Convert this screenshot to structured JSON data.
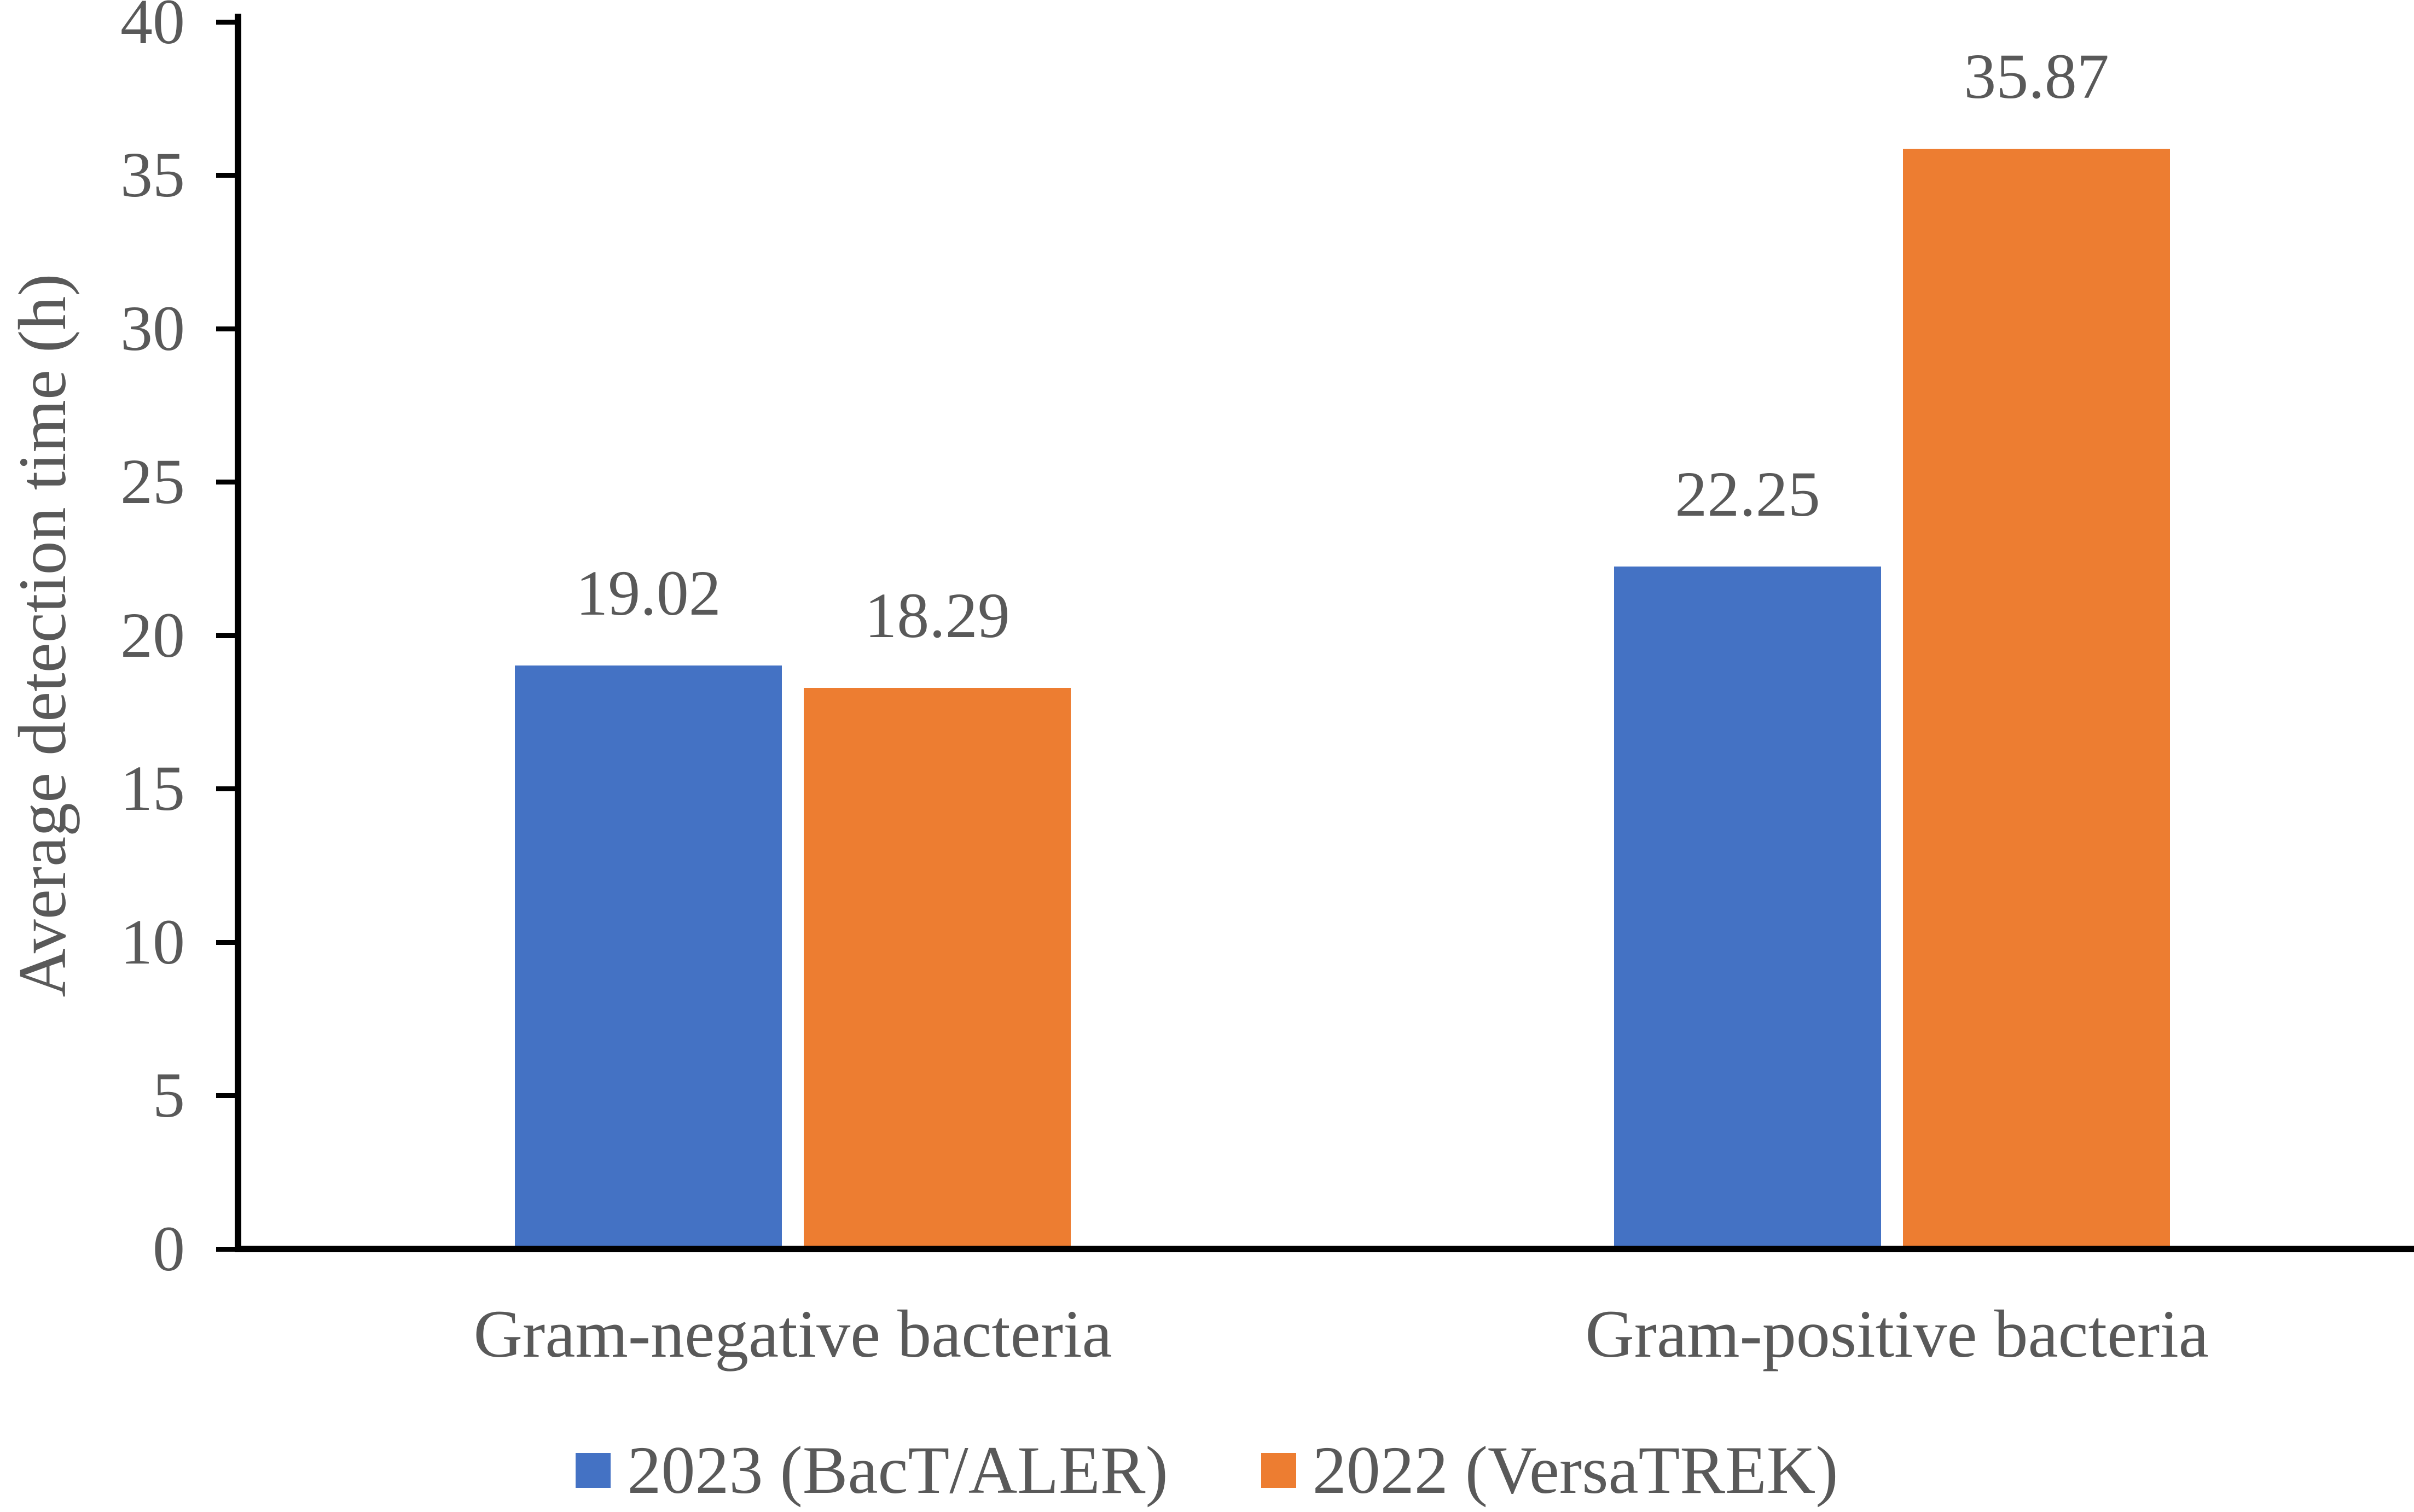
{
  "chart_data": {
    "type": "bar",
    "title": "",
    "xlabel": "",
    "ylabel": "Average detection time (h)",
    "ylim": [
      0,
      40
    ],
    "ytick_step": 5,
    "yticks": [
      40,
      35,
      30,
      25,
      20,
      15,
      10,
      5,
      0
    ],
    "grid": false,
    "legend_position": "bottom",
    "categories": [
      "Gram-negative bacteria",
      "Gram-positive bacteria"
    ],
    "series": [
      {
        "name": "2023 (BacT/ALER)",
        "color": "#4472C4",
        "values": [
          19.02,
          22.25
        ]
      },
      {
        "name": "2022 (VersaTREK)",
        "color": "#ED7D31",
        "values": [
          18.29,
          35.87
        ]
      }
    ],
    "data_labels_shown": true,
    "colors": {
      "axis_line": "#000000",
      "text": "#595959",
      "background": "#ffffff"
    }
  }
}
